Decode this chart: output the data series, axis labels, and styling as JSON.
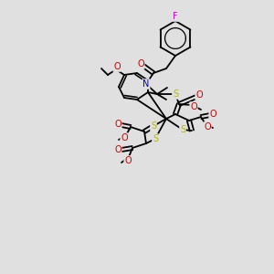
{
  "bg_color": "#e0e0e0",
  "atom_colors": {
    "C": "#000000",
    "N": "#0000cc",
    "O": "#cc0000",
    "S": "#b8b800",
    "F": "#cc00cc"
  },
  "line_color": "#000000",
  "line_width": 1.3,
  "figsize": [
    3.0,
    3.0
  ],
  "dpi": 100
}
